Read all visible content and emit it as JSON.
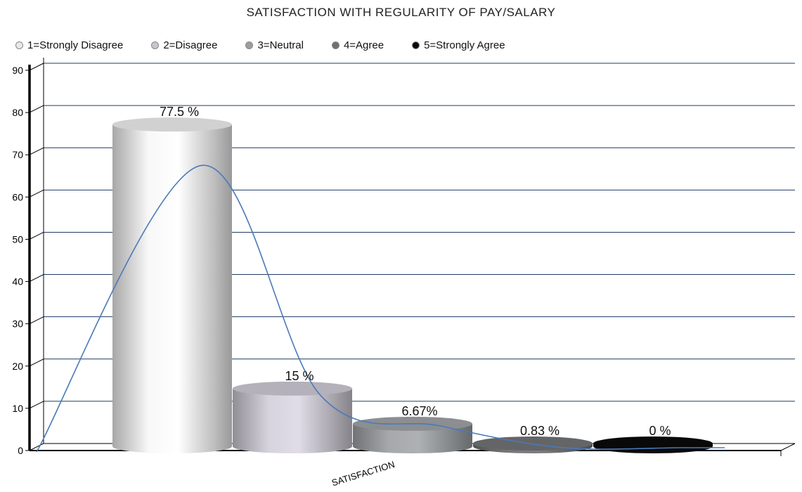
{
  "chart_data": {
    "type": "bar",
    "title": "SATISFACTION WITH REGULARITY OF PAY/SALARY",
    "xlabel": "SATISFACTION",
    "ylabel": "",
    "ylim": [
      0,
      90
    ],
    "yticks": [
      "0",
      "10",
      "20",
      "30",
      "40",
      "50",
      "60",
      "70",
      "80",
      "90"
    ],
    "grid": true,
    "legend_position": "top",
    "series": [
      {
        "name": "1=Strongly Disagree",
        "value": 77.5,
        "label": "77.5 %",
        "color": "#e8e8e8"
      },
      {
        "name": "2=Disagree",
        "value": 15,
        "label": "15 %",
        "color": "#c9c5cf"
      },
      {
        "name": "3=Neutral",
        "value": 6.67,
        "label": "6.67%",
        "color": "#9b9ea1"
      },
      {
        "name": "4=Agree",
        "value": 0.83,
        "label": "0.83 %",
        "color": "#6f7072"
      },
      {
        "name": "5=Strongly Agree",
        "value": 0,
        "label": "0 %",
        "color": "#0a0a0a"
      }
    ],
    "trend_line": {
      "type": "smoothed curve",
      "color": "#4a7ab8"
    }
  }
}
